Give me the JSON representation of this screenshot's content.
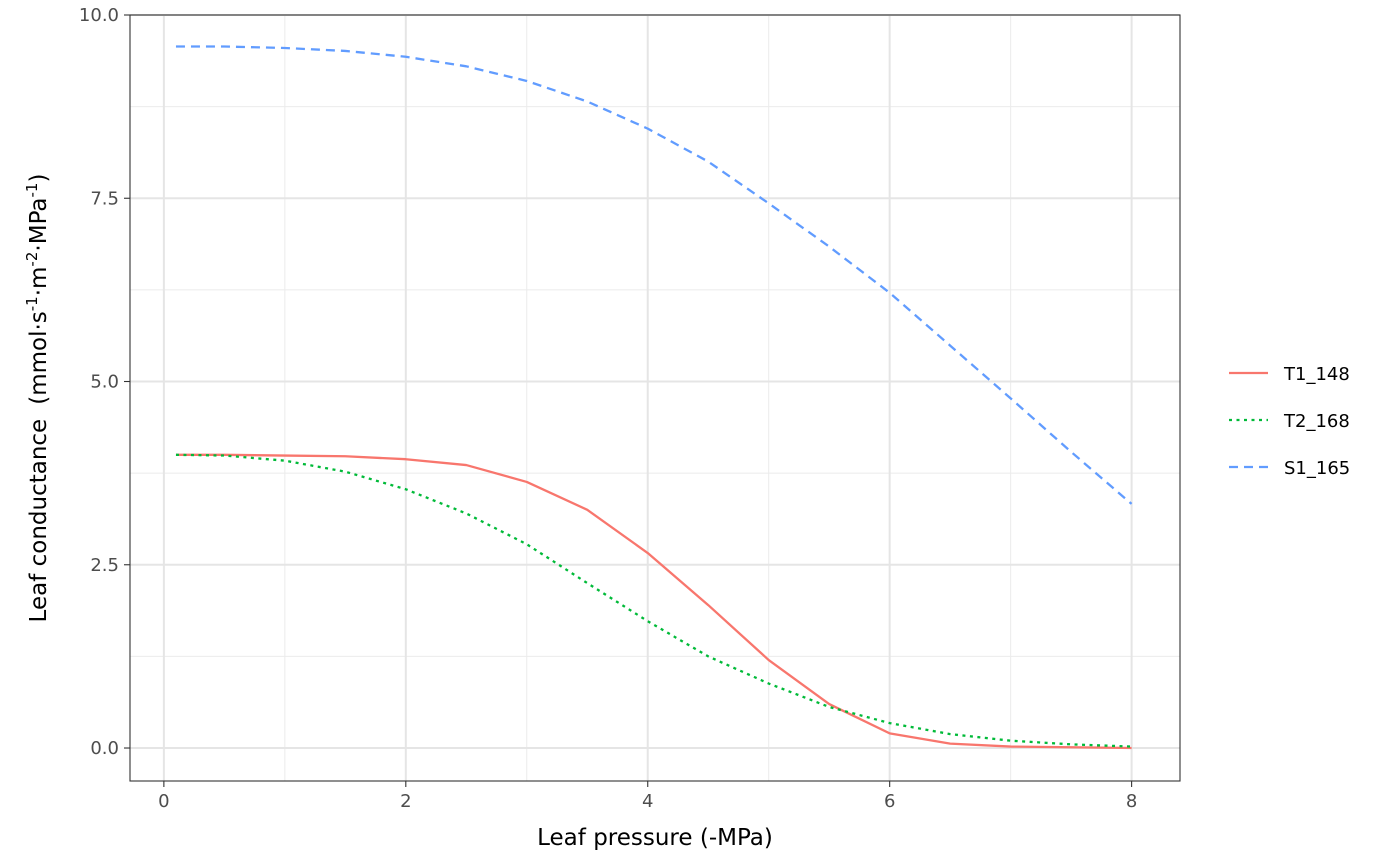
{
  "chart_data": {
    "type": "line",
    "title": "",
    "xlabel": "Leaf pressure (-MPa)",
    "ylabel": {
      "prefix": "Leaf conductance",
      "open": "(mmol",
      "s": "s",
      "s_exp": "-1",
      "m": "m",
      "m_exp": "-2",
      "mpa": "MPa",
      "mpa_exp": "-1",
      "close": ")",
      "dot": "·"
    },
    "xlim": [
      -0.28,
      8.4
    ],
    "ylim": [
      -0.45,
      10.0
    ],
    "x_ticks": [
      0,
      2,
      4,
      6,
      8
    ],
    "x_tick_labels": [
      "0",
      "2",
      "4",
      "6",
      "8"
    ],
    "y_ticks": [
      0,
      2.5,
      5,
      7.5,
      10
    ],
    "y_tick_labels": [
      "0.0",
      "2.5",
      "5.0",
      "7.5",
      "10.0"
    ],
    "grid": true,
    "legend_position": "right",
    "series": [
      {
        "name": "T1_148",
        "color": "#F8766D",
        "dash": "solid",
        "x": [
          0.1,
          0.5,
          1.0,
          1.5,
          2.0,
          2.5,
          3.0,
          3.5,
          4.0,
          4.5,
          5.0,
          5.5,
          6.0,
          6.5,
          7.0,
          7.5,
          8.0
        ],
        "y": [
          4.0,
          4.0,
          3.99,
          3.98,
          3.94,
          3.86,
          3.63,
          3.25,
          2.66,
          1.95,
          1.2,
          0.6,
          0.2,
          0.06,
          0.02,
          0.01,
          0.0
        ]
      },
      {
        "name": "T2_168",
        "color": "#00BA38",
        "dash": "dotted",
        "x": [
          0.1,
          0.5,
          1.0,
          1.5,
          2.0,
          2.5,
          3.0,
          3.5,
          4.0,
          4.5,
          5.0,
          5.5,
          6.0,
          6.5,
          7.0,
          7.5,
          8.0
        ],
        "y": [
          4.0,
          3.99,
          3.92,
          3.77,
          3.53,
          3.2,
          2.78,
          2.25,
          1.73,
          1.25,
          0.88,
          0.56,
          0.34,
          0.19,
          0.1,
          0.05,
          0.02
        ]
      },
      {
        "name": "S1_165",
        "color": "#619CFF",
        "dash": "dashed",
        "x": [
          0.1,
          0.5,
          1.0,
          1.5,
          2.0,
          2.5,
          3.0,
          3.5,
          4.0,
          4.5,
          5.0,
          5.5,
          6.0,
          6.5,
          7.0,
          7.5,
          8.0
        ],
        "y": [
          9.57,
          9.57,
          9.55,
          9.51,
          9.43,
          9.3,
          9.1,
          8.82,
          8.45,
          8.0,
          7.43,
          6.84,
          6.21,
          5.49,
          4.77,
          4.04,
          3.33
        ]
      }
    ]
  }
}
